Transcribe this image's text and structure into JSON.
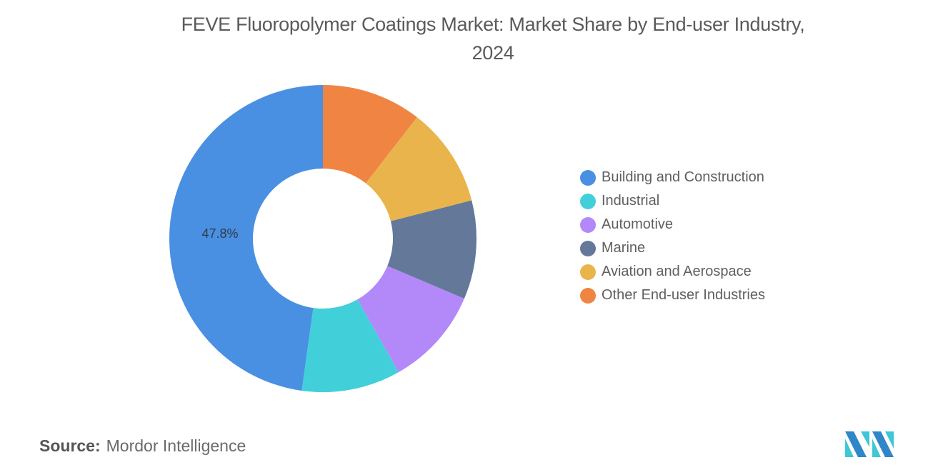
{
  "title": {
    "line1": "FEVE Fluoropolymer Coatings Market: Market Share by End-user Industry,",
    "line2": "2024"
  },
  "chart_data": {
    "type": "pie",
    "variant": "donut",
    "title": "FEVE Fluoropolymer Coatings Market: Market Share by End-user Industry, 2024",
    "unit": "%",
    "categories": [
      "Building and Construction",
      "Industrial",
      "Automotive",
      "Marine",
      "Aviation and Aerospace",
      "Other End-user Industries"
    ],
    "values": [
      47.8,
      10.4,
      10.4,
      10.4,
      10.5,
      10.5
    ],
    "colors": [
      "#4a90e2",
      "#41d0da",
      "#b388f9",
      "#647899",
      "#e9b44c",
      "#f08442"
    ],
    "data_labels": [
      {
        "category": "Building and Construction",
        "text": "47.8%"
      }
    ],
    "legend_position": "right",
    "start_angle_deg": 0,
    "direction": "clockwise from top, drawn order: Other, Aviation, Marine, Automotive, Industrial, Building"
  },
  "legend": {
    "items": [
      {
        "label": "Building and Construction",
        "color": "#4a90e2"
      },
      {
        "label": "Industrial",
        "color": "#41d0da"
      },
      {
        "label": "Automotive",
        "color": "#b388f9"
      },
      {
        "label": "Marine",
        "color": "#647899"
      },
      {
        "label": "Aviation and Aerospace",
        "color": "#e9b44c"
      },
      {
        "label": "Other End-user Industries",
        "color": "#f08442"
      }
    ]
  },
  "footer": {
    "source_key": "Source:",
    "source_value": "Mordor Intelligence"
  },
  "logo": {
    "icon": "mordor-intelligence-logo"
  }
}
